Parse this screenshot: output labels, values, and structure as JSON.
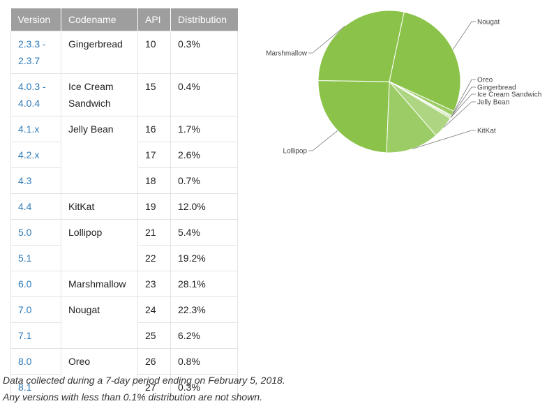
{
  "table": {
    "headers": [
      "Version",
      "Codename",
      "API",
      "Distribution"
    ],
    "rows": [
      {
        "version": [
          "2.3.3 -",
          "2.3.7"
        ],
        "codename": "Gingerbread",
        "api": "10",
        "distribution": "0.3%"
      },
      {
        "version": [
          "4.0.3 -",
          "4.0.4"
        ],
        "codename": "Ice Cream Sandwich",
        "api": "15",
        "distribution": "0.4%"
      },
      {
        "version": [
          "4.1.x"
        ],
        "codename": "Jelly Bean",
        "api": "16",
        "distribution": "1.7%"
      },
      {
        "version": [
          "4.2.x"
        ],
        "codename": "",
        "api": "17",
        "distribution": "2.6%"
      },
      {
        "version": [
          "4.3"
        ],
        "codename": "",
        "api": "18",
        "distribution": "0.7%"
      },
      {
        "version": [
          "4.4"
        ],
        "codename": "KitKat",
        "api": "19",
        "distribution": "12.0%"
      },
      {
        "version": [
          "5.0"
        ],
        "codename": "Lollipop",
        "api": "21",
        "distribution": "5.4%"
      },
      {
        "version": [
          "5.1"
        ],
        "codename": "",
        "api": "22",
        "distribution": "19.2%"
      },
      {
        "version": [
          "6.0"
        ],
        "codename": "Marshmallow",
        "api": "23",
        "distribution": "28.1%"
      },
      {
        "version": [
          "7.0"
        ],
        "codename": "Nougat",
        "api": "24",
        "distribution": "22.3%"
      },
      {
        "version": [
          "7.1"
        ],
        "codename": "",
        "api": "25",
        "distribution": "6.2%"
      },
      {
        "version": [
          "8.0"
        ],
        "codename": "Oreo",
        "api": "26",
        "distribution": "0.8%"
      },
      {
        "version": [
          "8.1"
        ],
        "codename": "",
        "api": "27",
        "distribution": "0.3%"
      }
    ],
    "colors": {
      "header_bg": "#9e9e9e",
      "version_link": "#2d7ab8"
    }
  },
  "chart_data": {
    "type": "pie",
    "slices": [
      {
        "label": "Nougat",
        "value": 28.5,
        "color": "#8bc34a"
      },
      {
        "label": "Oreo",
        "value": 1.1,
        "color": "#9ccc65"
      },
      {
        "label": "Gingerbread",
        "value": 0.3,
        "color": "#c5e1a5"
      },
      {
        "label": "Ice Cream Sandwich",
        "value": 0.4,
        "color": "#c5e1a5"
      },
      {
        "label": "Jelly Bean",
        "value": 5.0,
        "color": "#aed581"
      },
      {
        "label": "KitKat",
        "value": 12.0,
        "color": "#9ccc65"
      },
      {
        "label": "Lollipop",
        "value": 24.6,
        "color": "#8bc34a"
      },
      {
        "label": "Marshmallow",
        "value": 28.1,
        "color": "#8bc34a"
      }
    ],
    "legend": "none"
  },
  "footnotes": [
    "Data collected during a 7-day period ending on February 5, 2018.",
    "Any versions with less than 0.1% distribution are not shown."
  ]
}
